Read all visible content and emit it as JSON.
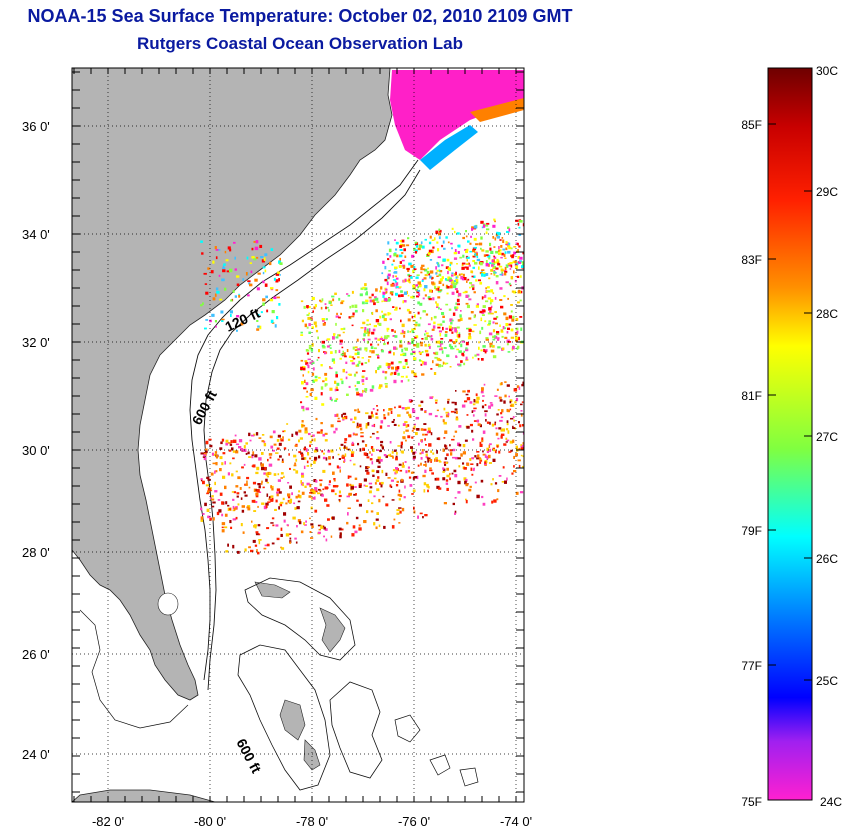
{
  "title_line1": "NOAA-15 Sea Surface Temperature:  October 02, 2010 2109 GMT",
  "title_line2": "Rutgers Coastal Ocean Observation Lab",
  "map": {
    "lon_labels": [
      "-82 0'",
      "-80 0'",
      "-78 0'",
      "-76 0'",
      "-74 0'"
    ],
    "lat_labels": [
      "36 0'",
      "34 0'",
      "32 0'",
      "30 0'",
      "28 0'",
      "26 0'",
      "24 0'"
    ],
    "contour_labels": [
      "120 ft",
      "600 ft",
      "600 ft"
    ],
    "land_color": "#b4b4b4"
  },
  "colorbar": {
    "fahrenheit_labels": [
      "85F",
      "83F",
      "81F",
      "79F",
      "77F",
      "75F"
    ],
    "celsius_labels": [
      "30C",
      "29C",
      "28C",
      "27C",
      "26C",
      "25C",
      "24C"
    ],
    "gradient_colors": [
      "#6e0000",
      "#ff0000",
      "#ff8000",
      "#ffff00",
      "#80ff40",
      "#00ffff",
      "#0060ff",
      "#0000ff",
      "#a020f0",
      "#ff20d0"
    ]
  }
}
